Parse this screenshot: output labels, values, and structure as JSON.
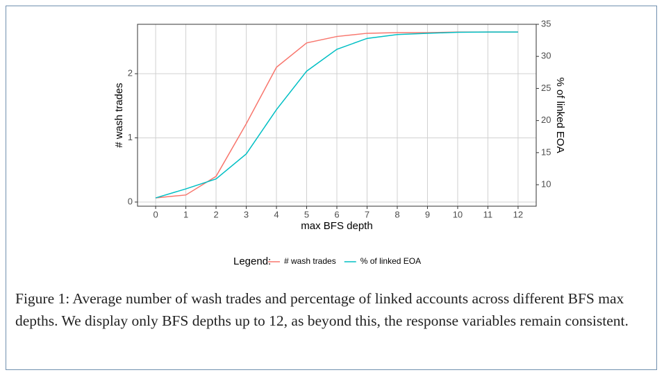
{
  "chart_data": {
    "type": "line",
    "categories": [
      "0",
      "1",
      "2",
      "3",
      "4",
      "5",
      "6",
      "7",
      "8",
      "9",
      "10",
      "11",
      "12"
    ],
    "x": [
      0,
      1,
      2,
      3,
      4,
      5,
      6,
      7,
      8,
      9,
      10,
      11,
      12
    ],
    "xlim": [
      -0.6,
      12.6
    ],
    "xticks": [
      0,
      1,
      2,
      3,
      4,
      5,
      6,
      7,
      8,
      9,
      10,
      11,
      12
    ],
    "ylim": [
      -0.065,
      2.77
    ],
    "yticks": [
      0,
      1,
      2
    ],
    "y2lim": [
      6.65,
      35
    ],
    "y2ticks": [
      10,
      15,
      20,
      25,
      30,
      35
    ],
    "xlabel": "max BFS depth",
    "ylabel": "# wash trades",
    "y2label": "% of linked EOA",
    "grid": true,
    "legend": {
      "title": "Legend:",
      "position": "bottom"
    },
    "series": [
      {
        "name": "# wash trades",
        "color": "#F8766D",
        "values": [
          0.065,
          0.11,
          0.4,
          1.22,
          2.1,
          2.48,
          2.58,
          2.63,
          2.64,
          2.64,
          2.65,
          2.65,
          2.65
        ]
      },
      {
        "name": "% of linked EOA",
        "color": "#00BFC4",
        "axis": "y2",
        "values": [
          7.94,
          9.35,
          10.9,
          14.8,
          21.7,
          27.7,
          31.1,
          32.8,
          33.4,
          33.6,
          33.75,
          33.8,
          33.8
        ]
      }
    ],
    "caption": "Figure 1: Average number of wash trades and percentage of linked accounts across different BFS max depths. We display only BFS depths up to 12, as beyond this, the response variables remain consistent."
  }
}
